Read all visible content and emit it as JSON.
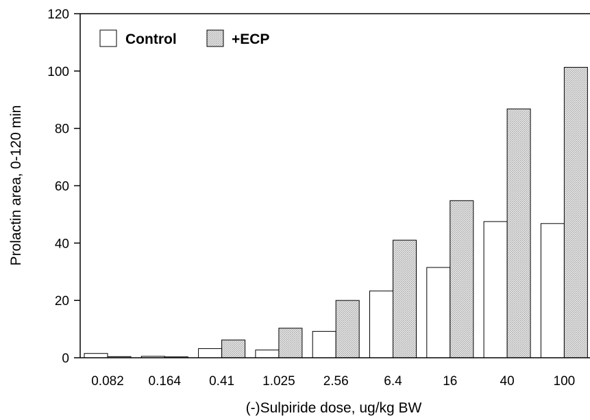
{
  "chart_data": {
    "type": "bar",
    "categories": [
      "0.082",
      "0.164",
      "0.41",
      "1.025",
      "2.56",
      "6.4",
      "16",
      "40",
      "100"
    ],
    "series": [
      {
        "name": "Control",
        "values": [
          1.5,
          0.5,
          3.2,
          2.7,
          9.2,
          23.3,
          31.5,
          47.5,
          46.8
        ],
        "color": "#ffffff"
      },
      {
        "name": "+ECP",
        "values": [
          0.4,
          0.3,
          6.2,
          10.3,
          20.0,
          41.0,
          54.8,
          86.8,
          101.3
        ],
        "color": "#d8d8d8"
      }
    ],
    "ylabel": "Prolactin area, 0-120 min",
    "xlabel": "(-)Sulpiride dose, ug/kg BW",
    "ylim": [
      0,
      120
    ],
    "yticks": [
      0,
      20,
      40,
      60,
      80,
      100,
      120
    ],
    "legend_position": "top-left",
    "grid": false
  }
}
